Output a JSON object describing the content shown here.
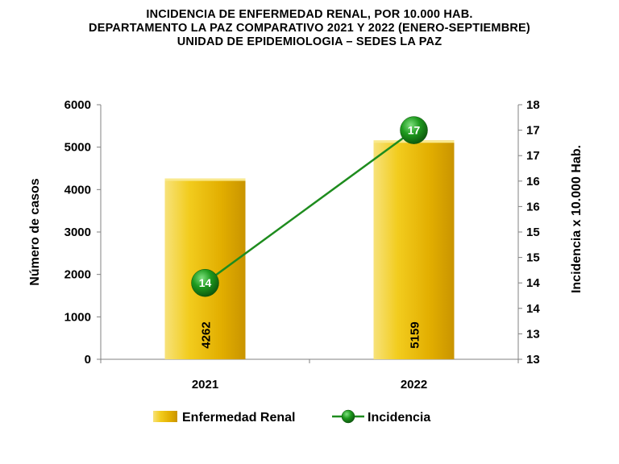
{
  "title": {
    "line1": "INCIDENCIA DE ENFERMEDAD RENAL, POR 10.000 HAB.",
    "line2": "DEPARTAMENTO LA PAZ COMPARATIVO 2021 Y 2022 (ENERO-SEPTIEMBRE)",
    "line3": "UNIDAD DE EPIDEMIOLOGIA – SEDES LA PAZ"
  },
  "chart_data": {
    "type": "bar",
    "categories": [
      "2021",
      "2022"
    ],
    "series": [
      {
        "name": "Enfermedad Renal",
        "type": "bar",
        "axis": "left",
        "values": [
          4262,
          5159
        ],
        "color": "#E8B800"
      },
      {
        "name": "Incidencia",
        "type": "line",
        "axis": "right",
        "values": [
          14,
          17
        ],
        "color": "#1E8C1E"
      }
    ],
    "ylabel": "Número de casos",
    "y2label": "Incidencia x 10.000 Hab.",
    "ylim": [
      0,
      6000
    ],
    "yticks": [
      0,
      1000,
      2000,
      3000,
      4000,
      5000,
      6000
    ],
    "y2ticks": [
      "13",
      "13",
      "14",
      "14",
      "15",
      "15",
      "16",
      "16",
      "17",
      "17",
      "18"
    ],
    "y2lim": [
      12.5,
      17.5
    ],
    "grid": false,
    "legend": "bottom"
  }
}
